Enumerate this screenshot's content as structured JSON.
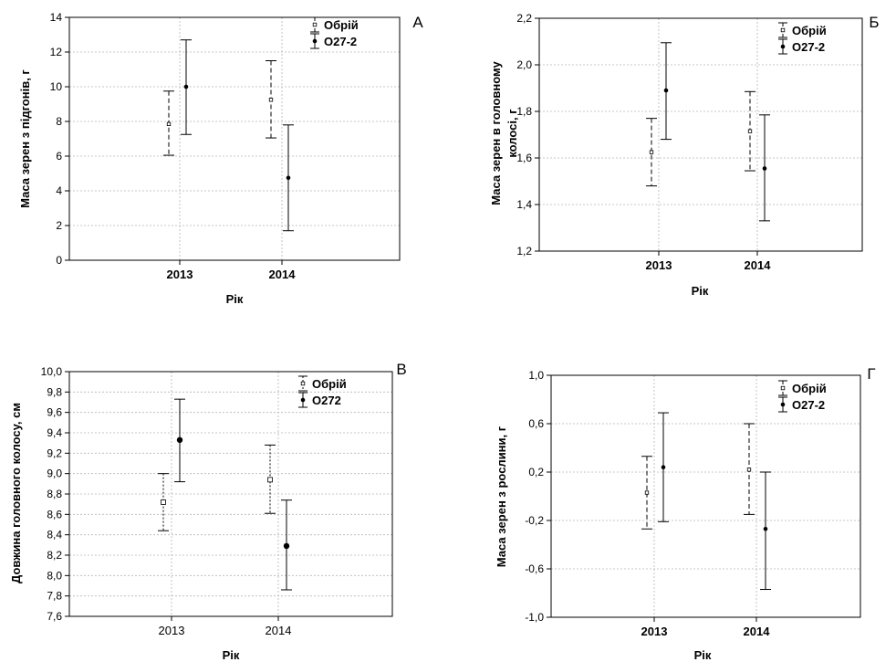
{
  "chart_data": [
    {
      "type": "errorbar",
      "panel_label": "А",
      "ylabel": "Маса зерен з підгонів, г",
      "xlabel": "Рік",
      "categories": [
        "2013",
        "2014"
      ],
      "ylim": [
        0,
        14
      ],
      "yticks": [
        "0",
        "2",
        "4",
        "6",
        "8",
        "10",
        "12",
        "14"
      ],
      "grid": true,
      "legend_position": "top-right",
      "series": [
        {
          "name": "Обрій",
          "mean": [
            7.85,
            9.25
          ],
          "lower": [
            6.05,
            7.05
          ],
          "upper": [
            9.75,
            11.5
          ]
        },
        {
          "name": "О27-2",
          "mean": [
            10.0,
            4.75
          ],
          "lower": [
            7.25,
            1.7
          ],
          "upper": [
            12.7,
            7.8
          ]
        }
      ]
    },
    {
      "type": "errorbar",
      "panel_label": "Б",
      "ylabel": "Маса зерен в головному колосі, г",
      "xlabel": "Рік",
      "categories": [
        "2013",
        "2014"
      ],
      "ylim": [
        1.2,
        2.2
      ],
      "yticks": [
        "1,2",
        "1,4",
        "1,6",
        "1,8",
        "2,0",
        "2,2"
      ],
      "grid": true,
      "legend_position": "top-right",
      "series": [
        {
          "name": "Обрій",
          "mean": [
            1.625,
            1.715
          ],
          "lower": [
            1.48,
            1.545
          ],
          "upper": [
            1.77,
            1.885
          ]
        },
        {
          "name": "О27-2",
          "mean": [
            1.89,
            1.555
          ],
          "lower": [
            1.68,
            1.33
          ],
          "upper": [
            2.095,
            1.785
          ]
        }
      ]
    },
    {
      "type": "errorbar",
      "panel_label": "В",
      "ylabel": "Довжина головного колосу, см",
      "xlabel": "Рік",
      "categories": [
        "2013",
        "2014"
      ],
      "ylim": [
        7.6,
        10.0
      ],
      "yticks": [
        "7,6",
        "7,8",
        "8,0",
        "8,2",
        "8,4",
        "8,6",
        "8,8",
        "9,0",
        "9,2",
        "9,4",
        "9,6",
        "9,8",
        "10,0"
      ],
      "grid": true,
      "legend_position": "top-right",
      "series": [
        {
          "name": "Обрій",
          "mean": [
            8.72,
            8.94
          ],
          "lower": [
            8.44,
            8.61
          ],
          "upper": [
            9.0,
            9.28
          ]
        },
        {
          "name": "О272",
          "mean": [
            9.33,
            8.29
          ],
          "lower": [
            8.92,
            7.86
          ],
          "upper": [
            9.73,
            8.74
          ]
        }
      ]
    },
    {
      "type": "errorbar",
      "panel_label": "Г",
      "ylabel": "Маса зерен з рослини, г",
      "xlabel": "Рік",
      "categories": [
        "2013",
        "2014"
      ],
      "ylim": [
        -1.0,
        1.0
      ],
      "yticks": [
        "-1,0",
        "-0,6",
        "-0,2",
        "0,2",
        "0,6",
        "1,0"
      ],
      "grid": true,
      "legend_position": "top-right",
      "series": [
        {
          "name": "Обрій",
          "mean": [
            0.03,
            0.22
          ],
          "lower": [
            -0.27,
            -0.15
          ],
          "upper": [
            0.33,
            0.6
          ]
        },
        {
          "name": "О27-2",
          "mean": [
            0.24,
            -0.27
          ],
          "lower": [
            -0.21,
            -0.77
          ],
          "upper": [
            0.69,
            0.2
          ]
        }
      ]
    }
  ]
}
